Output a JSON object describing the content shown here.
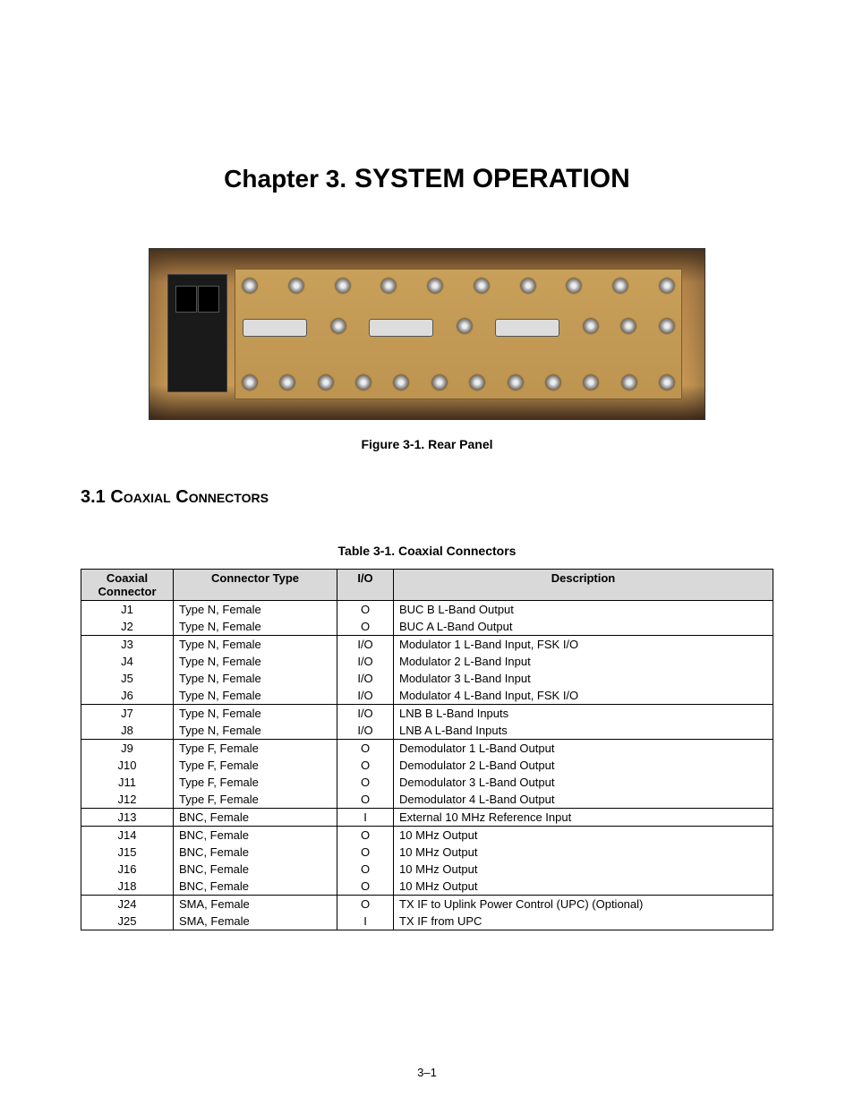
{
  "chapter": {
    "prefix": "Chapter 3.",
    "name": "SYSTEM OPERATION"
  },
  "figure": {
    "caption": "Figure 3-1.  Rear Panel"
  },
  "section": {
    "number": "3.1",
    "title": "Coaxial Connectors"
  },
  "table": {
    "caption": "Table 3-1. Coaxial Connectors",
    "headers": {
      "col1_line1": "Coaxial",
      "col1_line2": "Connector",
      "col2": "Connector Type",
      "col3": "I/O",
      "col4": "Description"
    },
    "groups": [
      {
        "rows": [
          {
            "c1": "J1",
            "c2": "Type N, Female",
            "c3": "O",
            "c4": "BUC B L-Band Output"
          },
          {
            "c1": "J2",
            "c2": "Type N, Female",
            "c3": "O",
            "c4": "BUC A L-Band Output"
          }
        ]
      },
      {
        "rows": [
          {
            "c1": "J3",
            "c2": "Type N, Female",
            "c3": "I/O",
            "c4": "Modulator 1 L-Band Input, FSK I/O"
          },
          {
            "c1": "J4",
            "c2": "Type N, Female",
            "c3": "I/O",
            "c4": "Modulator 2 L-Band Input"
          },
          {
            "c1": "J5",
            "c2": "Type N, Female",
            "c3": "I/O",
            "c4": "Modulator 3 L-Band Input"
          },
          {
            "c1": "J6",
            "c2": "Type N, Female",
            "c3": "I/O",
            "c4": "Modulator 4 L-Band Input, FSK I/O"
          }
        ]
      },
      {
        "rows": [
          {
            "c1": "J7",
            "c2": "Type N, Female",
            "c3": "I/O",
            "c4": "LNB B L-Band Inputs"
          },
          {
            "c1": "J8",
            "c2": "Type N, Female",
            "c3": "I/O",
            "c4": "LNB A L-Band Inputs"
          }
        ]
      },
      {
        "rows": [
          {
            "c1": "J9",
            "c2": "Type F, Female",
            "c3": "O",
            "c4": "Demodulator 1 L-Band Output"
          },
          {
            "c1": "J10",
            "c2": "Type F, Female",
            "c3": "O",
            "c4": "Demodulator 2 L-Band Output"
          },
          {
            "c1": "J11",
            "c2": "Type F, Female",
            "c3": "O",
            "c4": "Demodulator 3 L-Band Output"
          },
          {
            "c1": "J12",
            "c2": "Type F, Female",
            "c3": "O",
            "c4": "Demodulator 4 L-Band Output"
          }
        ]
      },
      {
        "rows": [
          {
            "c1": "J13",
            "c2": "BNC, Female",
            "c3": "I",
            "c4": "External 10 MHz Reference Input"
          }
        ]
      },
      {
        "rows": [
          {
            "c1": "J14",
            "c2": "BNC, Female",
            "c3": "O",
            "c4": "10 MHz Output"
          },
          {
            "c1": "J15",
            "c2": "BNC, Female",
            "c3": "O",
            "c4": "10 MHz Output"
          },
          {
            "c1": "J16",
            "c2": "BNC, Female",
            "c3": "O",
            "c4": "10 MHz Output"
          },
          {
            "c1": "J18",
            "c2": "BNC, Female",
            "c3": "O",
            "c4": "10 MHz Output"
          }
        ]
      },
      {
        "rows": [
          {
            "c1": "J24",
            "c2": "SMA, Female",
            "c3": "O",
            "c4": "TX IF to Uplink Power Control (UPC)  (Optional)"
          },
          {
            "c1": "J25",
            "c2": "SMA, Female",
            "c3": "I",
            "c4": "TX IF from UPC"
          }
        ]
      }
    ]
  },
  "page_number": "3–1"
}
